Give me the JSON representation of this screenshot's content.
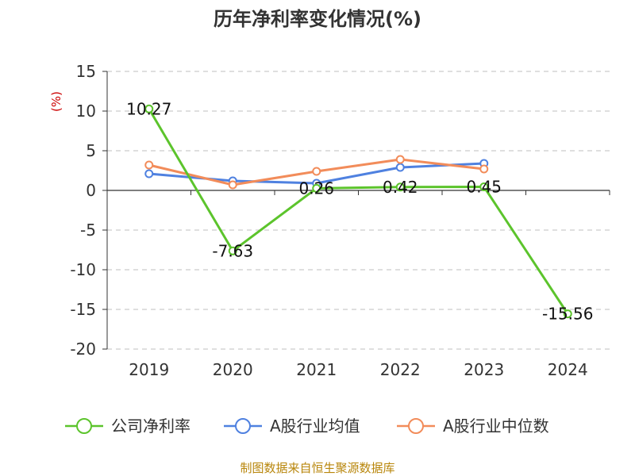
{
  "chart_data": {
    "type": "line",
    "title": "历年净利率变化情况(%)",
    "y_unit_label": "(%)",
    "categories": [
      "2019",
      "2020",
      "2021",
      "2022",
      "2023",
      "2024"
    ],
    "ylim": [
      -20,
      15
    ],
    "yticks": [
      15,
      10,
      5,
      0,
      -5,
      -10,
      -15,
      -20
    ],
    "grid": true,
    "legend_position": "bottom",
    "series": [
      {
        "name": "公司净利率",
        "color": "#5cc42c",
        "values": [
          10.27,
          -7.63,
          0.26,
          0.42,
          0.45,
          -15.56
        ],
        "labels": [
          "10.27",
          "-7.63",
          "0.26",
          "0.42",
          "0.45",
          "-15.56"
        ]
      },
      {
        "name": "A股行业均值",
        "color": "#4f81e0",
        "values": [
          2.1,
          1.2,
          0.9,
          2.9,
          3.4,
          null
        ]
      },
      {
        "name": "A股行业中位数",
        "color": "#f28c5a",
        "values": [
          3.2,
          0.7,
          2.4,
          3.9,
          2.7,
          null
        ]
      }
    ],
    "source": "制图数据来自恒生聚源数据库"
  }
}
